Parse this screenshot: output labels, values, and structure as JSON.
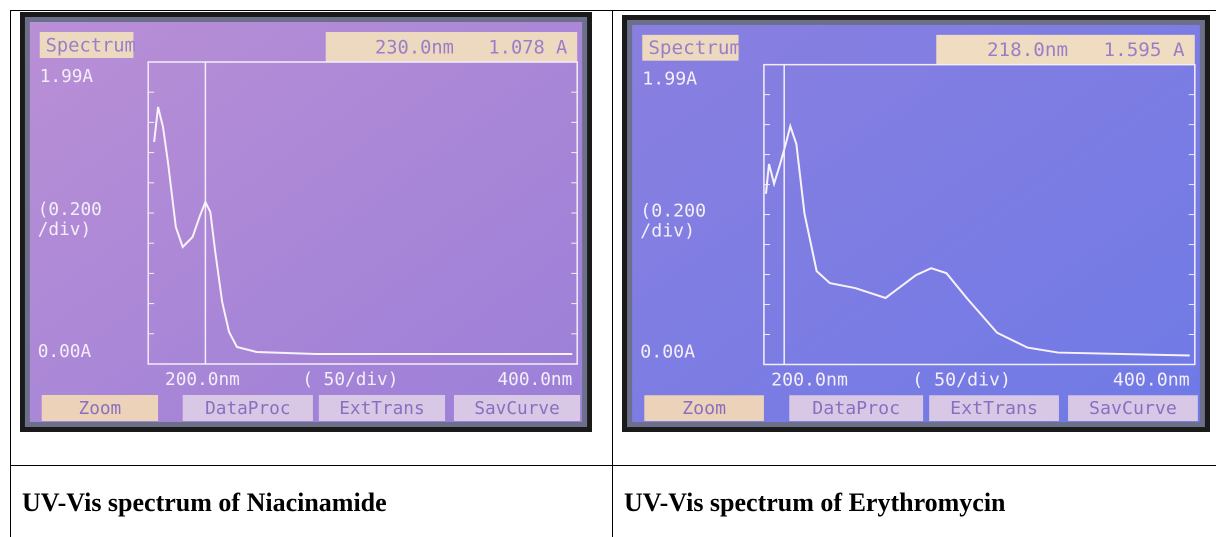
{
  "panels": [
    {
      "screen": {
        "header_label": "Spectrum",
        "readout_wavelength": "230.0nm",
        "readout_absorbance": "1.078 A",
        "y_max": "1.99A",
        "y_scale": [
          "(0.200",
          "/div)"
        ],
        "y_min": "0.00A",
        "x_min": "200.0nm",
        "x_scale": "(   50/div)",
        "x_max": "400.0nm",
        "buttons": [
          "Zoom",
          "DataProc",
          "ExtTrans",
          "SavCurve"
        ]
      },
      "caption": "UV-Vis spectrum of Niacinamide"
    },
    {
      "screen": {
        "header_label": "Spectrum",
        "readout_wavelength": "218.0nm",
        "readout_absorbance": "1.595 A",
        "y_max": "1.99A",
        "y_scale": [
          "(0.200",
          "/div)"
        ],
        "y_min": "0.00A",
        "x_min": "200.0nm",
        "x_scale": "(   50/div)",
        "x_max": "400.0nm",
        "buttons": [
          "Zoom",
          "DataProc",
          "ExtTrans",
          "SavCurve"
        ]
      },
      "caption": "UV-Vis spectrum of Erythromycin"
    }
  ]
}
